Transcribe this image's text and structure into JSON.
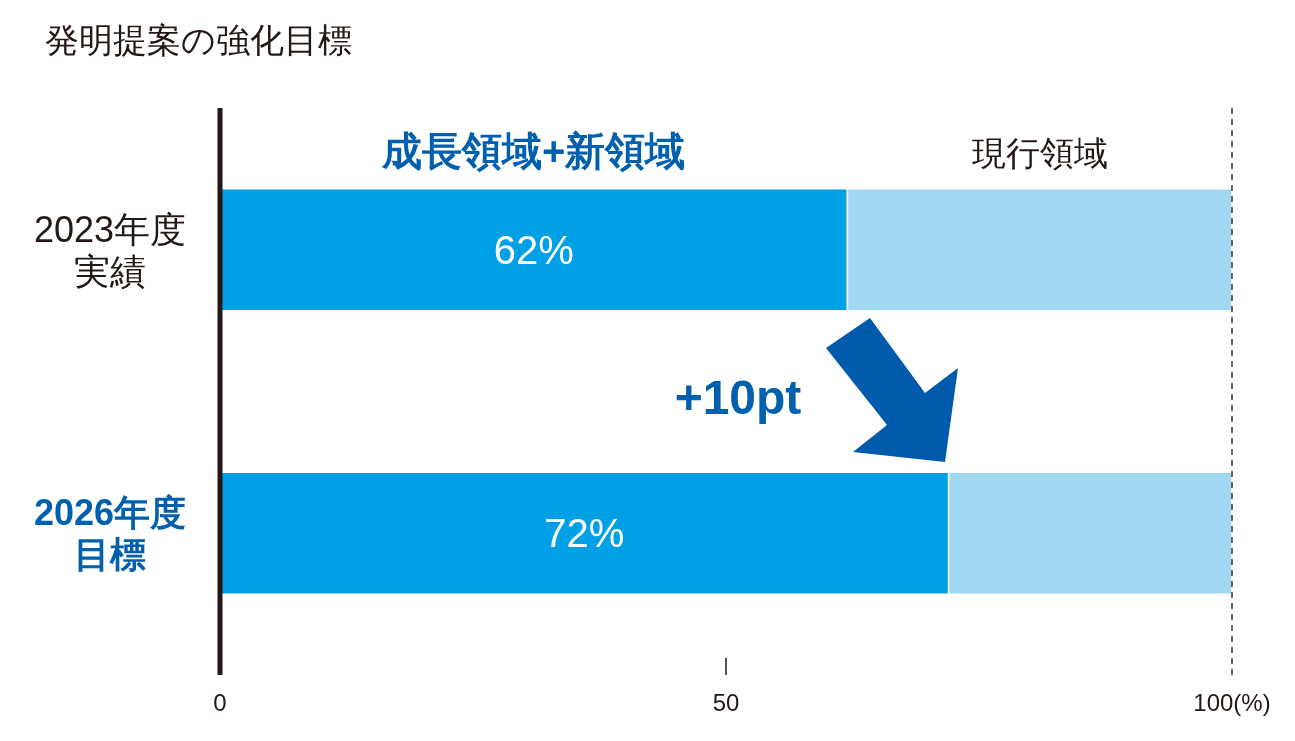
{
  "chart_data": {
    "type": "bar",
    "orientation": "horizontal",
    "stacked": true,
    "title": "発明提案の強化目標",
    "categories": [
      "2023年度実績",
      "2026年度目標"
    ],
    "series": [
      {
        "name": "成長領域+新領域",
        "color": "#00a0e6",
        "values": [
          62,
          72
        ],
        "value_labels": [
          "62%",
          "72%"
        ]
      },
      {
        "name": "現行領域",
        "color": "#a0d8f4",
        "values": [
          38,
          28
        ]
      }
    ],
    "xlim": [
      0,
      100
    ],
    "xticks": [
      0,
      50,
      {
        "value": 100,
        "label": "100(%)"
      }
    ],
    "ref_lines": [
      {
        "axis": "x",
        "value": 100,
        "line_style": "dashed",
        "color": "#333333"
      }
    ],
    "annotations": [
      "+10pt"
    ],
    "legend": false
  }
}
